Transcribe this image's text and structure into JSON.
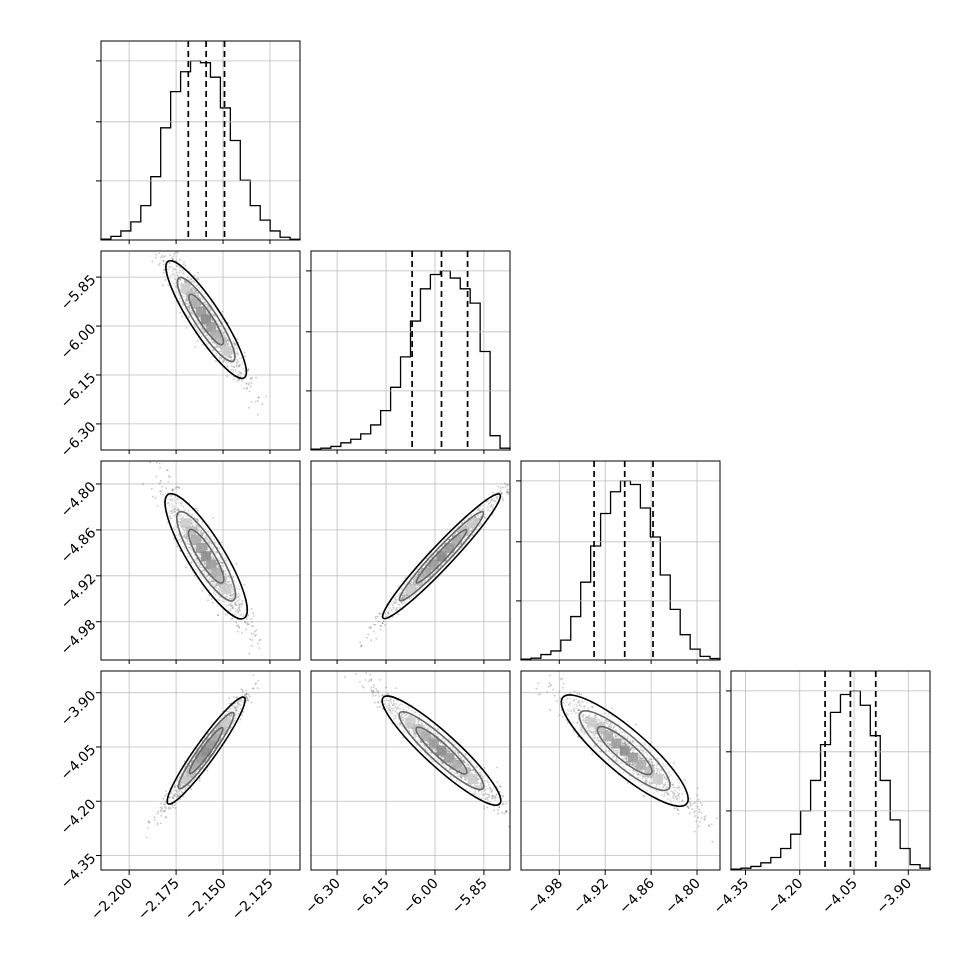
{
  "chart_data": {
    "type": "corner",
    "parameters": [
      {
        "range": [
          -2.215,
          -2.109
        ],
        "ticks": [
          -2.2,
          -2.175,
          -2.15,
          -2.125
        ],
        "tick_labels": [
          "−2.200",
          "−2.175",
          "−2.150",
          "−2.125"
        ],
        "quantiles": [
          -2.1685,
          -2.159,
          -2.1492
        ],
        "hist": [
          0.005,
          0.02,
          0.05,
          0.1,
          0.19,
          0.35,
          0.62,
          0.82,
          0.93,
          0.99,
          0.98,
          0.9,
          0.73,
          0.55,
          0.33,
          0.19,
          0.11,
          0.05,
          0.015,
          0.004
        ]
      },
      {
        "range": [
          -6.38,
          -5.77
        ],
        "ticks": [
          -6.3,
          -6.15,
          -6.0,
          -5.85
        ],
        "tick_labels": [
          "−6.30",
          "−6.15",
          "−6.00",
          "−5.85"
        ],
        "quantiles": [
          -6.07,
          -5.98,
          -5.9
        ],
        "hist": [
          0.005,
          0.01,
          0.02,
          0.04,
          0.06,
          0.09,
          0.14,
          0.22,
          0.35,
          0.52,
          0.72,
          0.9,
          0.98,
          1.0,
          0.96,
          0.9,
          0.82,
          0.55,
          0.08,
          0.01
        ]
      },
      {
        "range": [
          -5.03,
          -4.77
        ],
        "ticks": [
          -4.98,
          -4.92,
          -4.86,
          -4.8
        ],
        "tick_labels": [
          "−4.98",
          "−4.92",
          "−4.86",
          "−4.80"
        ],
        "quantiles": [
          -4.9345,
          -4.8945,
          -4.8575
        ],
        "hist": [
          0.005,
          0.01,
          0.03,
          0.05,
          0.11,
          0.24,
          0.43,
          0.63,
          0.81,
          0.93,
          0.99,
          0.97,
          0.84,
          0.68,
          0.47,
          0.28,
          0.14,
          0.06,
          0.02,
          0.008
        ]
      },
      {
        "range": [
          -4.39,
          -3.84
        ],
        "ticks": [
          -4.35,
          -4.2,
          -4.05,
          -3.9
        ],
        "tick_labels": [
          "−4.35",
          "−4.20",
          "−4.05",
          "−3.90"
        ],
        "quantiles": [
          -4.13,
          -4.06,
          -3.99
        ],
        "hist": [
          0.005,
          0.01,
          0.02,
          0.04,
          0.07,
          0.12,
          0.2,
          0.33,
          0.5,
          0.7,
          0.88,
          0.98,
          1.0,
          0.92,
          0.75,
          0.5,
          0.28,
          0.12,
          0.03,
          0.01
        ]
      }
    ],
    "grid": true
  }
}
